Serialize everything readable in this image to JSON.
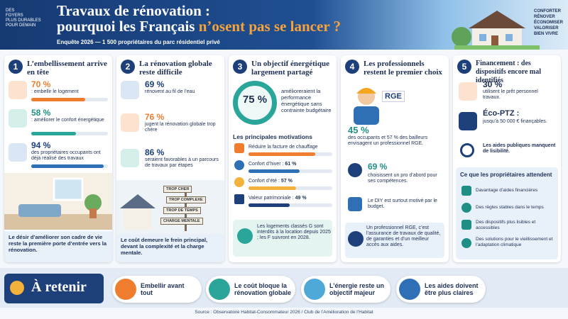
{
  "header": {
    "tagline": [
      "DES",
      "FOYERS",
      "PLUS DURABLES",
      "POUR DEMAIN"
    ],
    "title_line1": "Travaux de rénovation :",
    "title_line2a": "pourquoi les Français",
    "title_line2b": "n’osent pas se lancer ?",
    "subtitle": "Enquête 2026 — 1 500 propriétaires du parc résidentiel privé",
    "values": [
      "CONFORTER",
      "RÉNOVER",
      "ÉCONOMISER",
      "VALORISER",
      "BIEN VIVRE"
    ]
  },
  "columns": [
    {
      "number": "1",
      "title": "L’embellissement arrive en tête",
      "stats": [
        {
          "value": 70,
          "label": "70 %",
          "text": ": embellir le logement"
        },
        {
          "value": 58,
          "label": "58 %",
          "text": ": améliorer le confort énergétique"
        },
        {
          "value": 94,
          "label": "94 %",
          "text": "des propriétaires occupants ont déjà réalisé des travaux"
        }
      ],
      "caption": "Le désir d’améliorer son cadre de vie reste la première porte d’entrée vers la rénovation."
    },
    {
      "number": "2",
      "title": "La rénovation globale reste difficile",
      "stats": [
        {
          "label": "69 %",
          "text": "rénovent au fil de l’eau"
        },
        {
          "label": "76 %",
          "text": "jugent la rénovation globale trop chère"
        },
        {
          "label": "86 %",
          "text": "seraient favorables à un parcours de travaux par étapes"
        }
      ],
      "signs": [
        "TROP CHER",
        "TROP COMPLEXE",
        "TROP DE TEMPS",
        "CHARGE MENTALE"
      ],
      "caption": "Le coût demeure le frein principal, devant la complexité et la charge mentale."
    },
    {
      "number": "3",
      "title": "Un objectif énergétique largement partagé",
      "big": "75 %",
      "big_text": "amélioreraient la performance énergétique sans contrainte budgétaire",
      "motivations_title": "Les principales motivations",
      "motivations": [
        {
          "text": "Réduire la facture de chauffage",
          "value": 80
        },
        {
          "text": "Confort d’hiver :",
          "value": 61,
          "label": "61 %"
        },
        {
          "text": "Confort d’été :",
          "value": 57,
          "label": "57 %"
        },
        {
          "text": "Valeur patrimoniale :",
          "value": 49,
          "label": "49 %"
        }
      ],
      "caption": "Les logements classés G sont interdits à la location depuis 2025 ; les F suivront en 2028."
    },
    {
      "number": "4",
      "title": "Les professionnels restent le premier choix",
      "badge": "RGE",
      "stat1_label": "45 %",
      "stat1_text": "des occupants et 57 % des bailleurs envisagent un professionnel RGE.",
      "stat2_label": "69 %",
      "stat2_text": "choisissent un pro d’abord pour ses compétences.",
      "diy": "Le DIY est surtout motivé par le budget.",
      "caption": "Un professionnel RGE, c’est l’assurance de travaux de qualité, de garanties et d’un meilleur accès aux aides."
    },
    {
      "number": "5",
      "title": "Financement : des dispositifs encore mal identifiés",
      "stat1_label": "30 %",
      "stat1_text": "utilisent le prêt personnel travaux.",
      "stat2_label": "Éco-PTZ :",
      "stat2_text": "jusqu’à 50 000 € finançables.",
      "stat3_text": "Les aides publiques manquent de lisibilité.",
      "expectations_title": "Ce que les propriétaires attendent",
      "expectations": [
        "Davantage d’aides financières",
        "Des règles stables dans le temps",
        "Des dispositifs plus lisibles et accessibles",
        "Des solutions pour le vieillissement et l’adaptation climatique"
      ]
    }
  ],
  "bottom": {
    "title": "À retenir",
    "items": [
      "Embellir avant tout",
      "Le coût bloque la rénovation globale",
      "L’énergie reste un objectif majeur",
      "Les aides doivent être plus claires"
    ],
    "source": "Source : Observatoire Habitat-Consommateur 2026 / Club de l’Amélioration de l’Habitat"
  }
}
